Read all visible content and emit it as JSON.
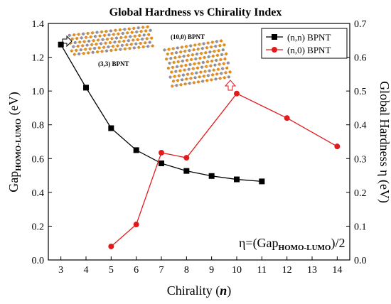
{
  "chart_data": {
    "type": "line",
    "title": "Global Hardness vs Chirality Index",
    "xlabel_main": "Chirality (",
    "xlabel_var": "n",
    "xlabel_end": ")",
    "ylabel_left_main": "Gap",
    "ylabel_left_sub": "HOMO-LUMO",
    "ylabel_left_unit": " (eV)",
    "ylabel_right": "Global Hardness η (eV)",
    "xlim": [
      2.5,
      14.5
    ],
    "x_ticks": [
      3,
      4,
      5,
      6,
      7,
      8,
      9,
      10,
      11,
      12,
      13,
      14
    ],
    "ylim_left": [
      0.0,
      1.4
    ],
    "y_ticks_left": [
      "0.0",
      "0.2",
      "0.4",
      "0.6",
      "0.8",
      "1.0",
      "1.2",
      "1.4"
    ],
    "ylim_right": [
      0.0,
      0.7
    ],
    "y_ticks_right": [
      "0.0",
      "0.1",
      "0.2",
      "0.3",
      "0.4",
      "0.5",
      "0.6",
      "0.7"
    ],
    "grid": false,
    "legend_position": "top-right",
    "series": [
      {
        "name": "(n,n) BPNT",
        "color": "#000000",
        "marker": "square",
        "axis": "left",
        "x": [
          3,
          4,
          5,
          6,
          7,
          8,
          9,
          10,
          11
        ],
        "y": [
          1.275,
          1.02,
          0.78,
          0.65,
          0.572,
          0.527,
          0.497,
          0.477,
          0.465
        ]
      },
      {
        "name": "(n,0) BPNT",
        "color": "#e31a1c",
        "marker": "circle",
        "axis": "left",
        "x": [
          5,
          6,
          7,
          8,
          10,
          12,
          14
        ],
        "y": [
          0.08,
          0.21,
          0.635,
          0.605,
          0.985,
          0.84,
          0.672
        ]
      }
    ],
    "annotations": {
      "formula_main": "η=(Gap",
      "formula_sub": "HOMO-LUMO",
      "formula_end": ")/2",
      "label_33": "(3,3) BPNT",
      "label_100": "(10,0) BPNT"
    }
  }
}
